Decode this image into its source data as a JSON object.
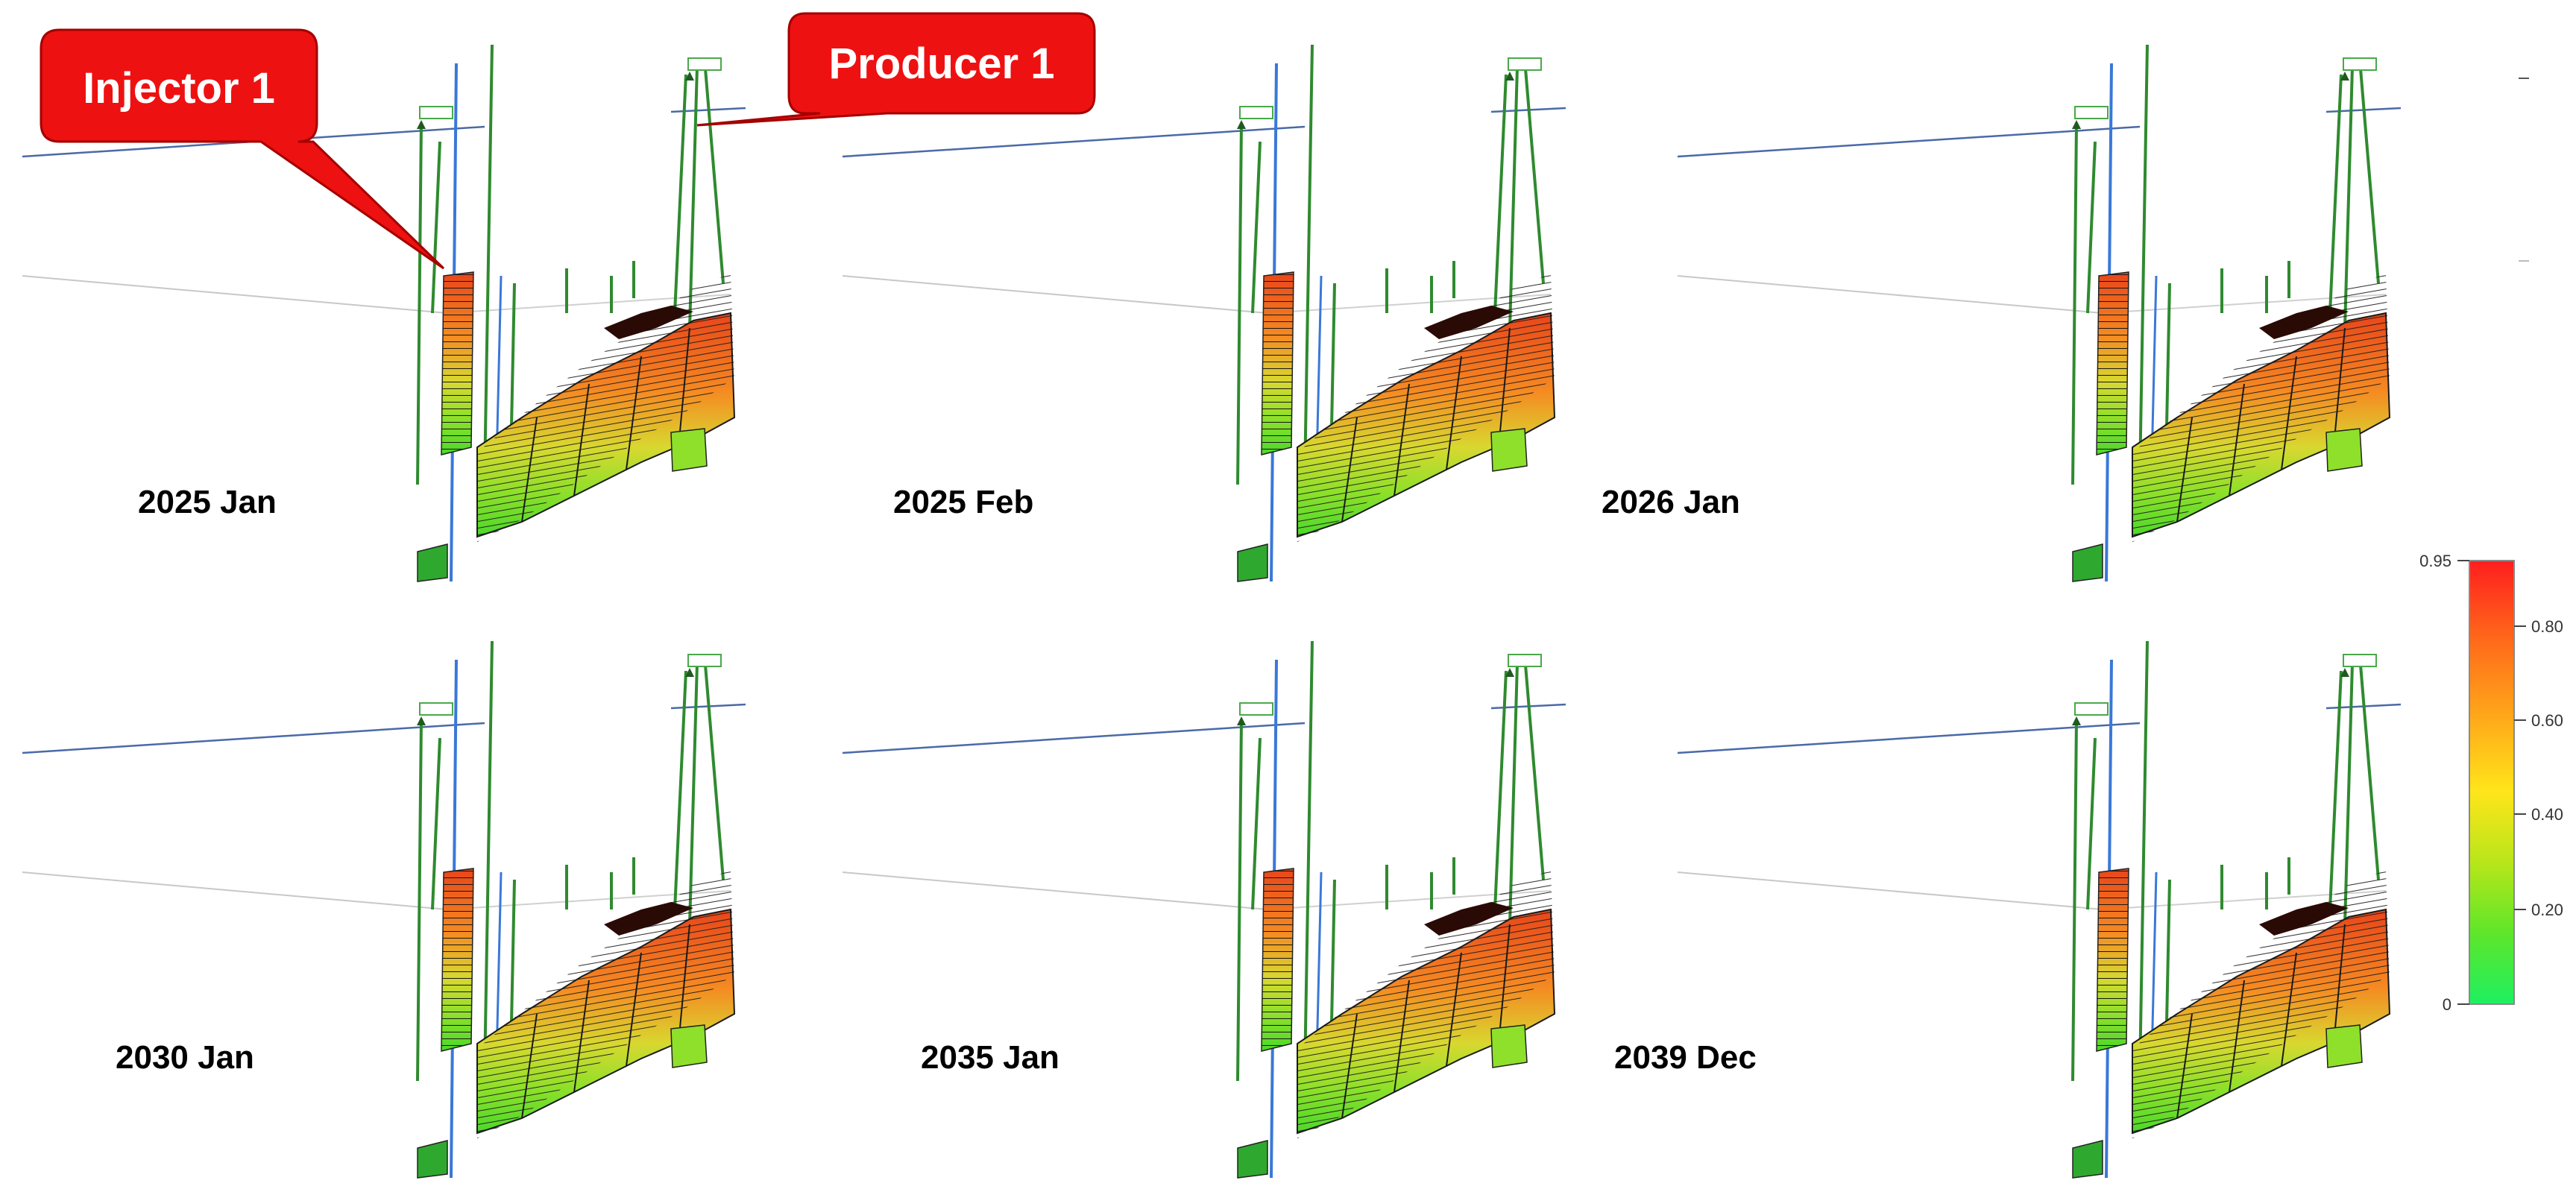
{
  "callouts": {
    "injector": "Injector 1",
    "producer": "Producer 1"
  },
  "panels": [
    {
      "date": "2025 Jan"
    },
    {
      "date": "2025 Feb"
    },
    {
      "date": "2026 Jan"
    },
    {
      "date": "2030 Jan"
    },
    {
      "date": "2035 Jan"
    },
    {
      "date": "2039 Dec"
    }
  ],
  "colorbar": {
    "ticks": [
      "0.95",
      "0.80",
      "0.60",
      "0.40",
      "0.20",
      "0"
    ],
    "colors": [
      "#ff2020",
      "#ff7a1a",
      "#ffd21a",
      "#c8e61a",
      "#55e62a",
      "#22ee55"
    ]
  },
  "colors": {
    "callout_fill": "#ee1111",
    "well_green": "#2f8a2f",
    "well_blue": "#3a78d8",
    "reference_line": "#4a6aa8"
  }
}
